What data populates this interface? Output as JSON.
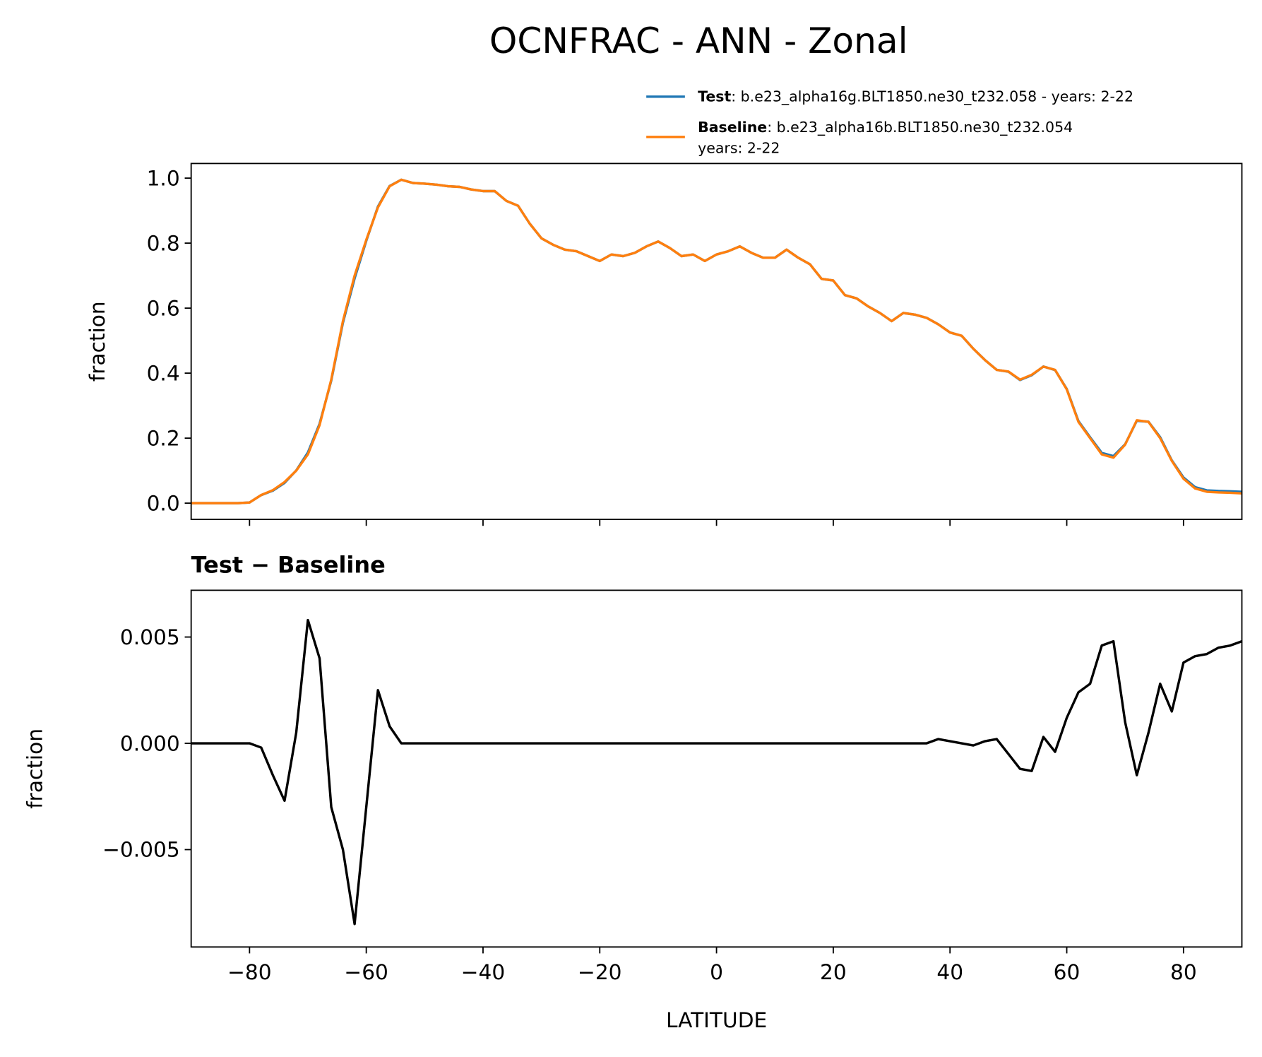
{
  "chart_data": [
    {
      "type": "line",
      "title": "OCNFRAC - ANN - Zonal",
      "ylabel": "fraction",
      "x": [
        -90,
        -88,
        -86,
        -84,
        -82,
        -80,
        -78,
        -76,
        -74,
        -72,
        -70,
        -68,
        -66,
        -64,
        -62,
        -60,
        -58,
        -56,
        -54,
        -52,
        -50,
        -48,
        -46,
        -44,
        -42,
        -40,
        -38,
        -36,
        -34,
        -32,
        -30,
        -28,
        -26,
        -24,
        -22,
        -20,
        -18,
        -16,
        -14,
        -12,
        -10,
        -8,
        -6,
        -4,
        -2,
        0,
        2,
        4,
        6,
        8,
        10,
        12,
        14,
        16,
        18,
        20,
        22,
        24,
        26,
        28,
        30,
        32,
        34,
        36,
        38,
        40,
        42,
        44,
        46,
        48,
        50,
        52,
        54,
        56,
        58,
        60,
        62,
        64,
        66,
        68,
        70,
        72,
        74,
        76,
        78,
        80,
        82,
        84,
        86,
        88,
        90
      ],
      "series": [
        {
          "name": "Test",
          "legend_text": [
            ": b.e23_alpha16g.BLT1850.ne30_t232.058 - years: 2-22"
          ],
          "color": "#1f77b4",
          "values": [
            0,
            0,
            0,
            0,
            0,
            0.002,
            0.0248,
            0.0385,
            0.0623,
            0.1005,
            0.1558,
            0.244,
            0.377,
            0.555,
            0.6915,
            0.807,
            0.9125,
            0.9758,
            0.995,
            0.985,
            0.983,
            0.98,
            0.975,
            0.973,
            0.965,
            0.96,
            0.96,
            0.93,
            0.915,
            0.86,
            0.815,
            0.795,
            0.78,
            0.775,
            0.76,
            0.745,
            0.765,
            0.76,
            0.77,
            0.79,
            0.805,
            0.785,
            0.76,
            0.765,
            0.745,
            0.765,
            0.775,
            0.79,
            0.77,
            0.755,
            0.755,
            0.78,
            0.755,
            0.735,
            0.69,
            0.685,
            0.64,
            0.63,
            0.605,
            0.585,
            0.56,
            0.585,
            0.58,
            0.57,
            0.5502,
            0.5251,
            0.515,
            0.4749,
            0.4401,
            0.4102,
            0.4045,
            0.3788,
            0.3937,
            0.4203,
            0.4096,
            0.3512,
            0.2524,
            0.2028,
            0.1546,
            0.1448,
            0.181,
            0.2535,
            0.2505,
            0.2028,
            0.1315,
            0.0788,
            0.0491,
            0.0392,
            0.0375,
            0.0366,
            0.0348
          ]
        },
        {
          "name": "Baseline",
          "legend_text": [
            ": b.e23_alpha16b.BLT1850.ne30_t232.054",
            "years: 2-22"
          ],
          "color": "#ff7f0e",
          "values": [
            0,
            0,
            0,
            0,
            0,
            0.002,
            0.025,
            0.04,
            0.065,
            0.1,
            0.15,
            0.24,
            0.38,
            0.56,
            0.7,
            0.81,
            0.91,
            0.975,
            0.995,
            0.985,
            0.983,
            0.98,
            0.975,
            0.973,
            0.965,
            0.96,
            0.96,
            0.93,
            0.915,
            0.86,
            0.815,
            0.795,
            0.78,
            0.775,
            0.76,
            0.745,
            0.765,
            0.76,
            0.77,
            0.79,
            0.805,
            0.785,
            0.76,
            0.765,
            0.745,
            0.765,
            0.775,
            0.79,
            0.77,
            0.755,
            0.755,
            0.78,
            0.755,
            0.735,
            0.69,
            0.685,
            0.64,
            0.63,
            0.605,
            0.585,
            0.56,
            0.585,
            0.58,
            0.57,
            0.55,
            0.525,
            0.515,
            0.475,
            0.44,
            0.41,
            0.405,
            0.38,
            0.395,
            0.42,
            0.41,
            0.35,
            0.25,
            0.2,
            0.15,
            0.14,
            0.18,
            0.255,
            0.25,
            0.2,
            0.13,
            0.075,
            0.045,
            0.035,
            0.033,
            0.032,
            0.03
          ]
        }
      ],
      "xlim": [
        -90,
        90
      ],
      "xticks": [
        -80,
        -60,
        -40,
        -20,
        0,
        20,
        40,
        60,
        80
      ],
      "ylim": [
        -0.05,
        1.045
      ],
      "yticks": [
        {
          "value": 0,
          "label": "0.0"
        },
        0.2,
        0.4,
        0.6,
        0.8,
        {
          "value": 1,
          "label": "1.0"
        }
      ],
      "legend": "upper right"
    },
    {
      "type": "line",
      "title": "Test − Baseline",
      "xlabel": "LATITUDE",
      "ylabel": "fraction",
      "color": "#000000",
      "x": [
        -90,
        -88,
        -86,
        -84,
        -82,
        -80,
        -78,
        -76,
        -74,
        -72,
        -70,
        -68,
        -66,
        -64,
        -62,
        -60,
        -58,
        -56,
        -54,
        -52,
        -50,
        -48,
        -46,
        -44,
        -42,
        -40,
        -38,
        -36,
        -34,
        -32,
        -30,
        -28,
        -26,
        -24,
        -22,
        -20,
        -18,
        -16,
        -14,
        -12,
        -10,
        -8,
        -6,
        -4,
        -2,
        0,
        2,
        4,
        6,
        8,
        10,
        12,
        14,
        16,
        18,
        20,
        22,
        24,
        26,
        28,
        30,
        32,
        34,
        36,
        38,
        40,
        42,
        44,
        46,
        48,
        50,
        52,
        54,
        56,
        58,
        60,
        62,
        64,
        66,
        68,
        70,
        72,
        74,
        76,
        78,
        80,
        82,
        84,
        86,
        88,
        90
      ],
      "values": [
        0,
        0,
        0,
        0,
        0,
        0,
        -0.0002,
        -0.0015,
        -0.0027,
        0.0005,
        0.0058,
        0.004,
        -0.003,
        -0.005,
        -0.0085,
        -0.003,
        0.0025,
        0.0008,
        0,
        0,
        0,
        0,
        0,
        0,
        0,
        0,
        0,
        0,
        0,
        0,
        0,
        0,
        0,
        0,
        0,
        0,
        0,
        0,
        0,
        0,
        0,
        0,
        0,
        0,
        0,
        0,
        0,
        0,
        0,
        0,
        0,
        0,
        0,
        0,
        0,
        0,
        0,
        0,
        0,
        0,
        0,
        0,
        0,
        0,
        0.0002,
        0.0001,
        0,
        -0.0001,
        0.0001,
        0.0002,
        -0.0005,
        -0.0012,
        -0.0013,
        0.0003,
        -0.0004,
        0.0012,
        0.0024,
        0.0028,
        0.0046,
        0.0048,
        0.001,
        -0.0015,
        0.0005,
        0.0028,
        0.0015,
        0.0038,
        0.0041,
        0.0042,
        0.0045,
        0.0046,
        0.0048
      ],
      "xlim": [
        -90,
        90
      ],
      "xticks": [
        {
          "value": -80,
          "label": "−80"
        },
        {
          "value": -60,
          "label": "−60"
        },
        {
          "value": -40,
          "label": "−40"
        },
        {
          "value": -20,
          "label": "−20"
        },
        0,
        20,
        40,
        60,
        80
      ],
      "ylim": [
        -0.00958,
        0.0072
      ],
      "yticks": [
        {
          "value": -0.005,
          "label": "−0.005"
        },
        {
          "value": 0,
          "label": "0.000"
        },
        0.005
      ]
    }
  ]
}
